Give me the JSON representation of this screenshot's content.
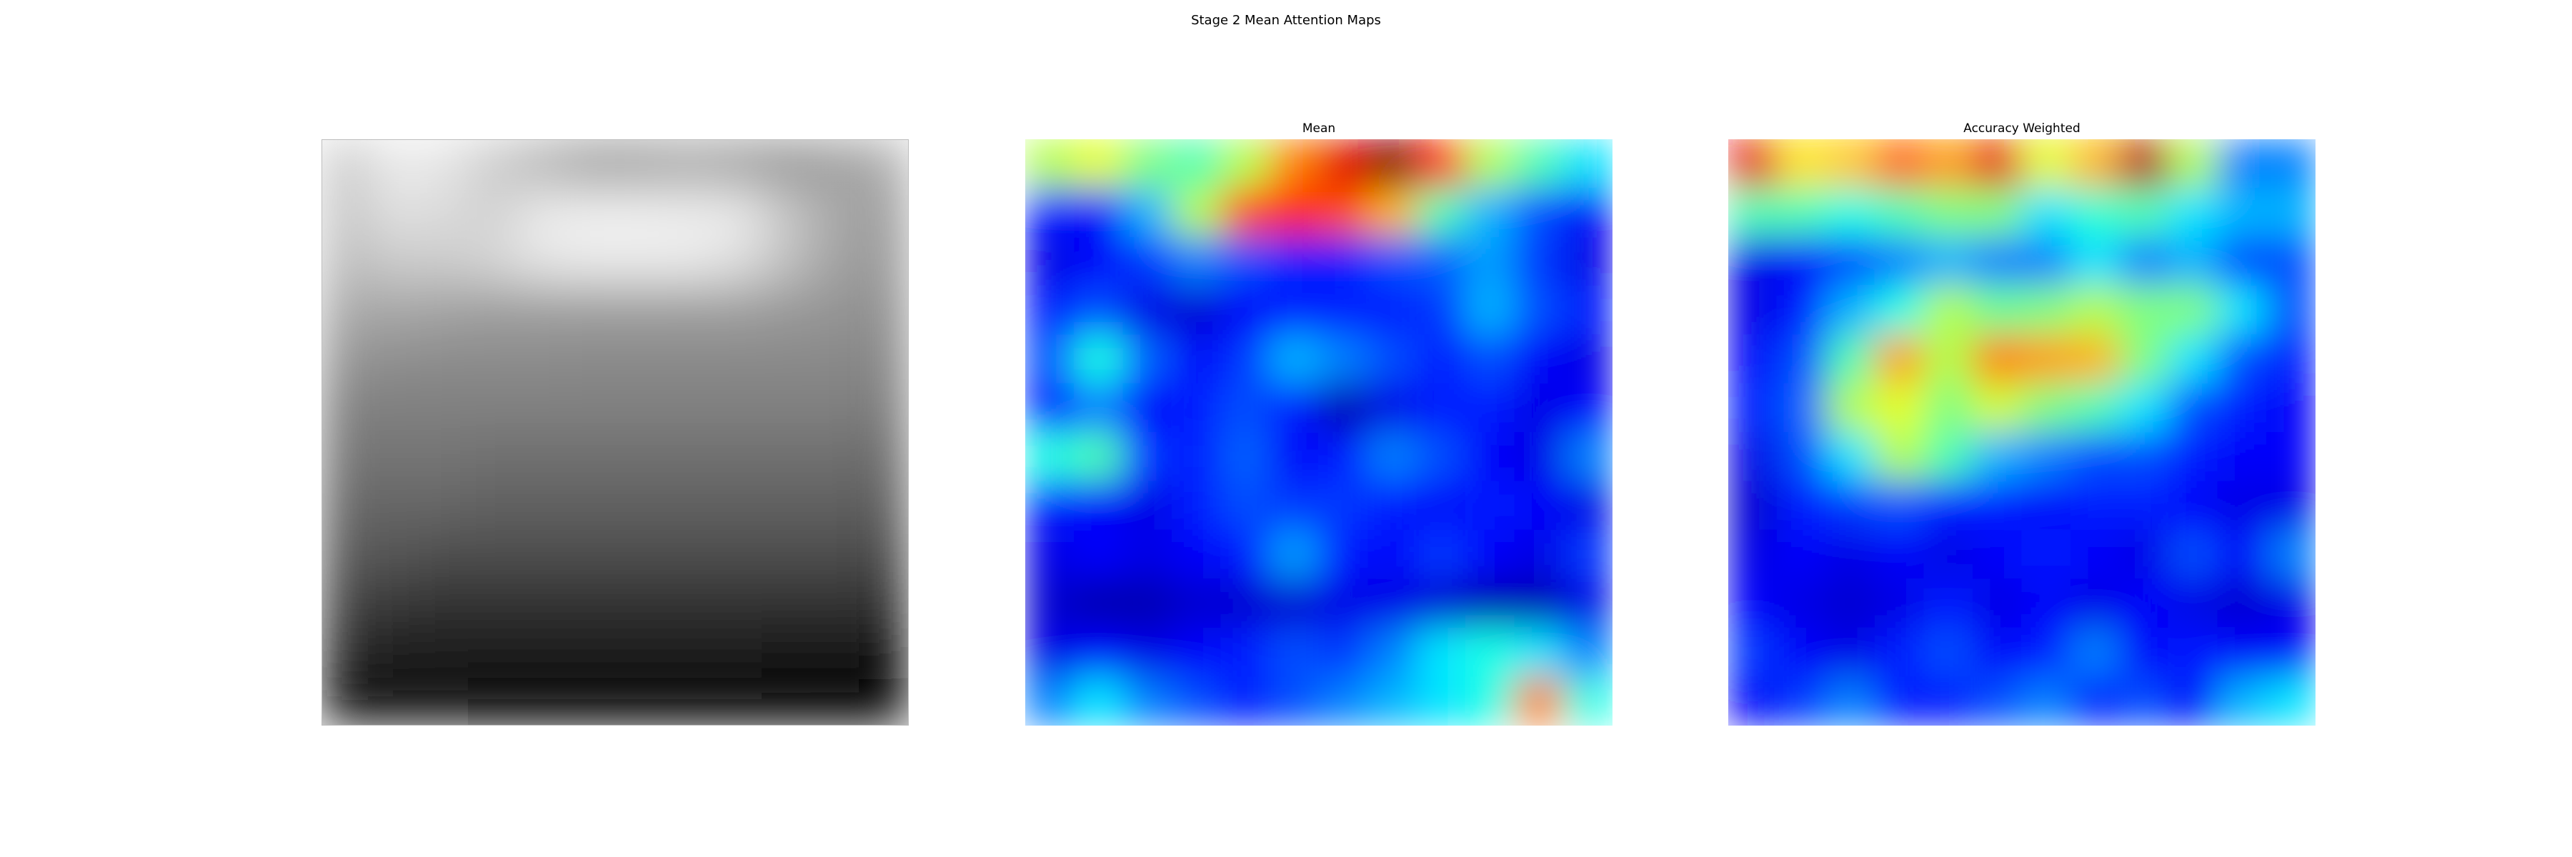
{
  "figure": {
    "title": "Stage 2 Mean Attention Maps"
  },
  "chart_data": [
    {
      "type": "heatmap",
      "title": "",
      "colormap": "gray",
      "axes": "off",
      "grid_size": [
        12,
        12
      ],
      "values": [
        [
          0.8,
          0.92,
          0.9,
          0.8,
          0.7,
          0.62,
          0.62,
          0.65,
          0.62,
          0.58,
          0.62,
          0.68
        ],
        [
          0.78,
          0.88,
          0.86,
          0.82,
          0.92,
          0.94,
          0.94,
          0.93,
          0.92,
          0.78,
          0.66,
          0.62
        ],
        [
          0.74,
          0.8,
          0.8,
          0.84,
          0.9,
          0.92,
          0.92,
          0.92,
          0.88,
          0.76,
          0.64,
          0.6
        ],
        [
          0.66,
          0.66,
          0.64,
          0.62,
          0.62,
          0.62,
          0.62,
          0.62,
          0.62,
          0.6,
          0.58,
          0.56
        ],
        [
          0.58,
          0.56,
          0.55,
          0.55,
          0.55,
          0.54,
          0.54,
          0.54,
          0.54,
          0.54,
          0.54,
          0.52
        ],
        [
          0.5,
          0.5,
          0.5,
          0.5,
          0.5,
          0.5,
          0.5,
          0.5,
          0.5,
          0.5,
          0.5,
          0.48
        ],
        [
          0.46,
          0.46,
          0.46,
          0.44,
          0.44,
          0.44,
          0.44,
          0.44,
          0.44,
          0.44,
          0.44,
          0.42
        ],
        [
          0.4,
          0.4,
          0.4,
          0.38,
          0.38,
          0.38,
          0.38,
          0.38,
          0.38,
          0.38,
          0.38,
          0.36
        ],
        [
          0.34,
          0.34,
          0.3,
          0.3,
          0.3,
          0.3,
          0.3,
          0.3,
          0.3,
          0.3,
          0.3,
          0.28
        ],
        [
          0.26,
          0.22,
          0.2,
          0.2,
          0.2,
          0.2,
          0.2,
          0.2,
          0.2,
          0.2,
          0.2,
          0.18
        ],
        [
          0.16,
          0.12,
          0.1,
          0.1,
          0.1,
          0.1,
          0.1,
          0.1,
          0.1,
          0.08,
          0.08,
          0.06
        ],
        [
          0.06,
          0.04,
          0.03,
          0.02,
          0.02,
          0.02,
          0.02,
          0.02,
          0.02,
          0.02,
          0.01,
          0.0
        ]
      ]
    },
    {
      "type": "heatmap",
      "title": "Mean",
      "colormap": "jet",
      "axes": "off",
      "grid_size": [
        12,
        12
      ],
      "values": [
        [
          0.55,
          0.6,
          0.5,
          0.45,
          0.55,
          0.75,
          0.9,
          1.0,
          0.85,
          0.55,
          0.45,
          0.35
        ],
        [
          0.15,
          0.12,
          0.3,
          0.55,
          0.8,
          0.85,
          0.8,
          0.7,
          0.45,
          0.3,
          0.2,
          0.12
        ],
        [
          0.1,
          0.12,
          0.18,
          0.25,
          0.2,
          0.15,
          0.15,
          0.2,
          0.22,
          0.28,
          0.18,
          0.1
        ],
        [
          0.15,
          0.2,
          0.1,
          0.08,
          0.12,
          0.15,
          0.15,
          0.15,
          0.18,
          0.3,
          0.2,
          0.15
        ],
        [
          0.2,
          0.4,
          0.22,
          0.12,
          0.18,
          0.3,
          0.25,
          0.2,
          0.15,
          0.2,
          0.12,
          0.1
        ],
        [
          0.15,
          0.25,
          0.12,
          0.15,
          0.2,
          0.15,
          0.05,
          0.1,
          0.15,
          0.15,
          0.1,
          0.12
        ],
        [
          0.4,
          0.45,
          0.18,
          0.15,
          0.22,
          0.12,
          0.15,
          0.25,
          0.2,
          0.12,
          0.1,
          0.25
        ],
        [
          0.15,
          0.12,
          0.1,
          0.15,
          0.2,
          0.18,
          0.18,
          0.15,
          0.12,
          0.15,
          0.12,
          0.1
        ],
        [
          0.1,
          0.12,
          0.1,
          0.12,
          0.15,
          0.28,
          0.15,
          0.12,
          0.18,
          0.12,
          0.1,
          0.18
        ],
        [
          0.08,
          0.05,
          0.05,
          0.08,
          0.08,
          0.08,
          0.1,
          0.1,
          0.08,
          0.05,
          0.05,
          0.1
        ],
        [
          0.1,
          0.12,
          0.1,
          0.12,
          0.15,
          0.2,
          0.18,
          0.25,
          0.35,
          0.4,
          0.35,
          0.25
        ],
        [
          0.25,
          0.35,
          0.25,
          0.2,
          0.15,
          0.2,
          0.25,
          0.3,
          0.35,
          0.4,
          0.75,
          0.4
        ]
      ]
    },
    {
      "type": "heatmap",
      "title": "Accuracy Weighted",
      "colormap": "jet",
      "axes": "off",
      "grid_size": [
        12,
        12
      ],
      "values": [
        [
          0.9,
          0.65,
          0.68,
          0.78,
          0.72,
          0.9,
          0.6,
          0.7,
          0.95,
          0.55,
          0.25,
          0.25
        ],
        [
          0.45,
          0.45,
          0.4,
          0.45,
          0.5,
          0.5,
          0.35,
          0.42,
          0.45,
          0.35,
          0.3,
          0.3
        ],
        [
          0.1,
          0.12,
          0.2,
          0.25,
          0.3,
          0.25,
          0.25,
          0.35,
          0.25,
          0.3,
          0.2,
          0.2
        ],
        [
          0.1,
          0.15,
          0.3,
          0.4,
          0.55,
          0.48,
          0.5,
          0.55,
          0.5,
          0.5,
          0.35,
          0.2
        ],
        [
          0.12,
          0.2,
          0.45,
          0.72,
          0.55,
          0.75,
          0.72,
          0.7,
          0.5,
          0.35,
          0.2,
          0.15
        ],
        [
          0.15,
          0.22,
          0.55,
          0.6,
          0.5,
          0.58,
          0.5,
          0.45,
          0.35,
          0.2,
          0.15,
          0.12
        ],
        [
          0.1,
          0.2,
          0.35,
          0.55,
          0.45,
          0.3,
          0.25,
          0.2,
          0.2,
          0.15,
          0.12,
          0.12
        ],
        [
          0.08,
          0.15,
          0.18,
          0.2,
          0.15,
          0.15,
          0.12,
          0.15,
          0.15,
          0.12,
          0.1,
          0.1
        ],
        [
          0.1,
          0.12,
          0.1,
          0.12,
          0.1,
          0.12,
          0.15,
          0.12,
          0.1,
          0.2,
          0.12,
          0.25
        ],
        [
          0.12,
          0.1,
          0.08,
          0.1,
          0.15,
          0.1,
          0.12,
          0.1,
          0.12,
          0.1,
          0.08,
          0.1
        ],
        [
          0.18,
          0.12,
          0.1,
          0.15,
          0.2,
          0.12,
          0.15,
          0.25,
          0.12,
          0.15,
          0.12,
          0.12
        ],
        [
          0.12,
          0.18,
          0.25,
          0.15,
          0.15,
          0.2,
          0.25,
          0.15,
          0.2,
          0.12,
          0.3,
          0.35
        ]
      ]
    }
  ]
}
